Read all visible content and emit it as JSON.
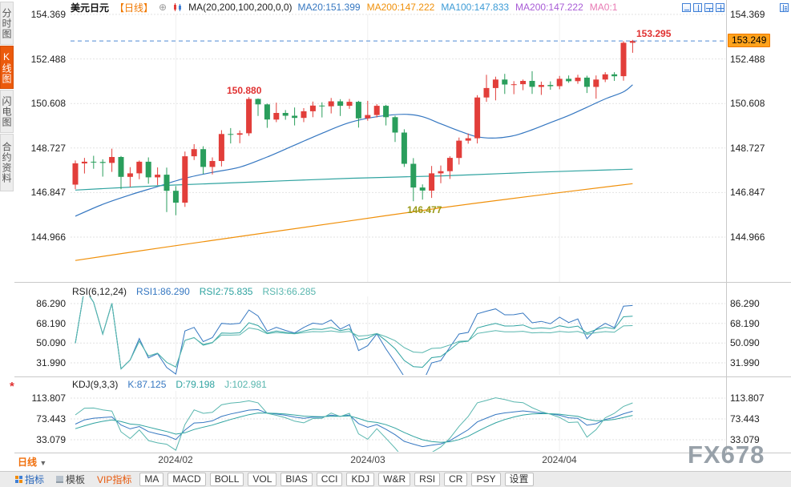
{
  "header": {
    "symbol": "美元日元",
    "period_tag": "【日线】",
    "add_icon": "⊕",
    "ma_settings": "MA(20,200,100,200,0,0)",
    "ma_values": [
      {
        "label": "MA20:151.399",
        "color": "#3577c1"
      },
      {
        "label": "MA200:147.222",
        "color": "#f0900a"
      },
      {
        "label": "MA100:147.833",
        "color": "#3c9bd6"
      },
      {
        "label": "MA200:147.222",
        "color": "#a85cd6"
      },
      {
        "label": "MA0:1",
        "color": "#e87bb4"
      }
    ]
  },
  "sidebar": {
    "items": [
      {
        "label": "分时图",
        "name": "time-chart",
        "active": false
      },
      {
        "label": "K线图",
        "name": "kline-chart",
        "active": true
      },
      {
        "label": "闪电图",
        "name": "flash-chart",
        "active": false
      },
      {
        "label": "合约资料",
        "name": "contract-info",
        "active": false
      }
    ]
  },
  "window_icons": [
    "layout-single",
    "layout-two-pane",
    "layout-three-pane",
    "layout-four-pane",
    "collapse-panel"
  ],
  "bottom": {
    "period_tab": "日线",
    "watermark": "FX678"
  },
  "toolbar": {
    "tabs": [
      {
        "label": "指标",
        "name": "indicators",
        "color": "#2262b8",
        "icon": true
      },
      {
        "label": "模板",
        "name": "templates",
        "color": "#444444",
        "icon": true
      },
      {
        "label": "VIP指标",
        "name": "vip-indicators",
        "color": "#e8590c",
        "icon": false
      }
    ],
    "buttons": [
      {
        "label": "MA",
        "name": "ma"
      },
      {
        "label": "MACD",
        "name": "macd"
      },
      {
        "label": "BOLL",
        "name": "boll"
      },
      {
        "label": "VOL",
        "name": "vol"
      },
      {
        "label": "BIAS",
        "name": "bias"
      },
      {
        "label": "CCI",
        "name": "cci"
      },
      {
        "label": "KDJ",
        "name": "kdj"
      },
      {
        "label": "W&R",
        "name": "wr"
      },
      {
        "label": "RSI",
        "name": "rsi"
      },
      {
        "label": "CR",
        "name": "cr"
      },
      {
        "label": "PSY",
        "name": "psy"
      },
      {
        "label": "设置",
        "name": "settings"
      }
    ]
  },
  "chart_data": {
    "type": "candlestick",
    "title": "美元日元 日线",
    "up_color": "#e23e3a",
    "down_color": "#2a9e5c",
    "y_axis_ticks": [
      "154.369",
      "152.488",
      "150.608",
      "148.727",
      "146.847",
      "144.966"
    ],
    "x_axis_labels": [
      {
        "label": "2024/02",
        "index": 11
      },
      {
        "label": "2024/03",
        "index": 32
      },
      {
        "label": "2024/04",
        "index": 53
      }
    ],
    "candles": [
      [
        147.18,
        148.2,
        146.99,
        148.08
      ],
      [
        148.08,
        148.31,
        147.65,
        148.15
      ],
      [
        148.15,
        148.4,
        147.85,
        148.14
      ],
      [
        148.14,
        148.25,
        147.52,
        148.1
      ],
      [
        148.1,
        148.7,
        147.72,
        148.35
      ],
      [
        148.35,
        148.39,
        146.99,
        147.51
      ],
      [
        147.51,
        147.92,
        147.08,
        147.66
      ],
      [
        147.66,
        148.2,
        147.41,
        148.15
      ],
      [
        148.15,
        148.33,
        147.22,
        147.49
      ],
      [
        147.49,
        147.91,
        147.16,
        147.6
      ],
      [
        147.6,
        147.9,
        146.02,
        146.92
      ],
      [
        146.92,
        147.12,
        145.89,
        146.42
      ],
      [
        146.42,
        148.58,
        146.24,
        148.38
      ],
      [
        148.38,
        148.89,
        148.22,
        148.68
      ],
      [
        148.68,
        148.8,
        147.63,
        147.93
      ],
      [
        147.93,
        148.33,
        147.61,
        148.18
      ],
      [
        148.18,
        149.48,
        147.95,
        149.32
      ],
      [
        149.32,
        149.57,
        148.92,
        149.29
      ],
      [
        149.29,
        149.47,
        148.93,
        149.35
      ],
      [
        149.35,
        150.88,
        149.24,
        150.8
      ],
      [
        150.8,
        150.82,
        150.08,
        150.57
      ],
      [
        150.57,
        150.6,
        149.58,
        149.93
      ],
      [
        149.93,
        150.64,
        149.82,
        150.21
      ],
      [
        150.21,
        150.33,
        149.92,
        150.09
      ],
      [
        150.09,
        150.44,
        149.68,
        150.0
      ],
      [
        150.0,
        150.41,
        149.82,
        150.28
      ],
      [
        150.28,
        150.69,
        150.03,
        150.52
      ],
      [
        150.52,
        150.66,
        150.02,
        150.49
      ],
      [
        150.49,
        150.84,
        150.19,
        150.7
      ],
      [
        150.7,
        150.79,
        150.08,
        150.51
      ],
      [
        150.51,
        150.8,
        150.38,
        150.68
      ],
      [
        150.68,
        150.72,
        149.59,
        149.98
      ],
      [
        149.98,
        150.72,
        149.88,
        150.12
      ],
      [
        150.12,
        150.58,
        150.02,
        150.51
      ],
      [
        150.51,
        150.55,
        149.68,
        150.03
      ],
      [
        150.03,
        150.09,
        148.98,
        149.38
      ],
      [
        149.38,
        149.52,
        147.93,
        148.06
      ],
      [
        148.06,
        148.3,
        146.48,
        147.06
      ],
      [
        147.06,
        147.19,
        146.55,
        146.93
      ],
      [
        146.93,
        147.97,
        146.62,
        147.66
      ],
      [
        147.66,
        147.99,
        147.24,
        147.75
      ],
      [
        147.75,
        148.38,
        147.42,
        148.31
      ],
      [
        148.31,
        149.17,
        148.03,
        149.04
      ],
      [
        149.04,
        149.34,
        148.91,
        149.14
      ],
      [
        149.14,
        150.96,
        148.92,
        150.86
      ],
      [
        150.86,
        151.82,
        150.68,
        151.26
      ],
      [
        151.26,
        151.74,
        150.74,
        151.62
      ],
      [
        151.62,
        151.86,
        151.01,
        151.41
      ],
      [
        151.41,
        151.55,
        151.0,
        151.42
      ],
      [
        151.42,
        151.62,
        151.17,
        151.56
      ],
      [
        151.56,
        151.97,
        151.01,
        151.31
      ],
      [
        151.31,
        151.53,
        150.97,
        151.39
      ],
      [
        151.39,
        151.54,
        151.19,
        151.34
      ],
      [
        151.34,
        151.77,
        151.21,
        151.65
      ],
      [
        151.65,
        151.79,
        151.48,
        151.55
      ],
      [
        151.55,
        151.82,
        151.44,
        151.7
      ],
      [
        151.7,
        151.78,
        151.05,
        151.31
      ],
      [
        151.31,
        151.79,
        150.81,
        151.62
      ],
      [
        151.62,
        151.93,
        151.51,
        151.84
      ],
      [
        151.84,
        151.93,
        151.56,
        151.76
      ],
      [
        151.76,
        153.24,
        151.57,
        153.17
      ],
      [
        153.17,
        153.295,
        152.75,
        153.249
      ]
    ],
    "overlays": [
      {
        "name": "MA20",
        "color": "#3577c1",
        "points": [
          [
            0,
            145.85
          ],
          [
            3,
            146.35
          ],
          [
            6,
            146.75
          ],
          [
            9,
            147.1
          ],
          [
            12,
            147.45
          ],
          [
            15,
            147.7
          ],
          [
            18,
            147.92
          ],
          [
            21,
            148.35
          ],
          [
            24,
            148.85
          ],
          [
            27,
            149.35
          ],
          [
            30,
            149.8
          ],
          [
            33,
            150.05
          ],
          [
            36,
            150.15
          ],
          [
            38,
            150.05
          ],
          [
            40,
            149.75
          ],
          [
            42,
            149.45
          ],
          [
            44,
            149.2
          ],
          [
            46,
            149.15
          ],
          [
            48,
            149.25
          ],
          [
            50,
            149.5
          ],
          [
            52,
            149.8
          ],
          [
            54,
            150.1
          ],
          [
            56,
            150.45
          ],
          [
            58,
            150.8
          ],
          [
            60,
            151.1
          ],
          [
            61,
            151.4
          ]
        ]
      },
      {
        "name": "MA100",
        "color": "#2fa3a0",
        "points": [
          [
            0,
            146.95
          ],
          [
            10,
            147.15
          ],
          [
            20,
            147.3
          ],
          [
            30,
            147.45
          ],
          [
            40,
            147.55
          ],
          [
            50,
            147.7
          ],
          [
            61,
            147.833
          ]
        ]
      },
      {
        "name": "MA200",
        "color": "#f0900a",
        "points": [
          [
            0,
            143.98
          ],
          [
            10,
            144.55
          ],
          [
            20,
            145.1
          ],
          [
            30,
            145.65
          ],
          [
            40,
            146.2
          ],
          [
            50,
            146.7
          ],
          [
            61,
            147.222
          ]
        ]
      }
    ],
    "annotations": [
      {
        "text": "150.880",
        "x_index": 19,
        "position": "above",
        "side": "left",
        "color": "#e03131"
      },
      {
        "text": "153.295",
        "x_index": 61,
        "position": "above",
        "side": "right",
        "color": "#e03131"
      },
      {
        "text": "146.477",
        "x_index": 37,
        "position": "below",
        "side": "right",
        "color": "#9a9a17"
      }
    ],
    "last_price": {
      "label": "153.249"
    },
    "panes": [
      {
        "name": "RSI",
        "title": "RSI(6,12,24)",
        "periods": [
          6,
          12,
          24
        ],
        "legend": [
          {
            "label": "RSI1:86.290",
            "color": "#3577c1"
          },
          {
            "label": "RSI2:75.835",
            "color": "#2fa3a0"
          },
          {
            "label": "RSI3:66.285",
            "color": "#58b6ae"
          }
        ],
        "ticks": [
          "86.290",
          "68.190",
          "50.090",
          "31.990"
        ],
        "line_colors": [
          "#3577c1",
          "#2fa3a0",
          "#58b6ae"
        ]
      },
      {
        "name": "KDJ",
        "title": "KDJ(9,3,3)",
        "legend": [
          {
            "label": "K:87.125",
            "color": "#3577c1"
          },
          {
            "label": "D:79.198",
            "color": "#2fa3a0"
          },
          {
            "label": "J:102.981",
            "color": "#58b6ae"
          }
        ],
        "ticks": [
          "113.807",
          "73.443",
          "33.079"
        ],
        "line_colors": [
          "#3577c1",
          "#2fa3a0",
          "#58b6ae"
        ]
      }
    ]
  }
}
